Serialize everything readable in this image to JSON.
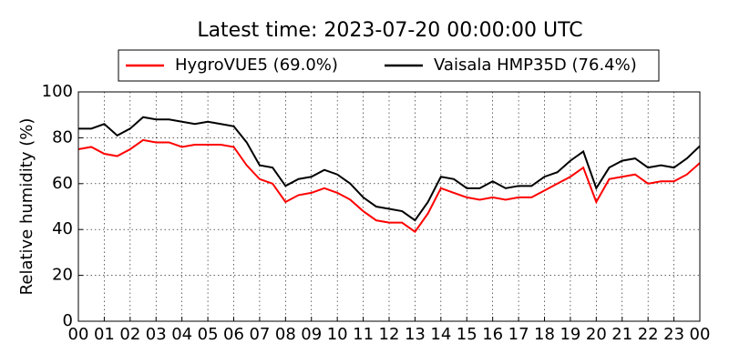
{
  "chart_data": {
    "type": "line",
    "title": "Latest time: 2023-07-20 00:00:00 UTC",
    "y_label": "Relative humidity (%)",
    "x": [
      0,
      0.5,
      1,
      1.5,
      2,
      2.5,
      3,
      3.5,
      4,
      4.5,
      5,
      5.5,
      6,
      6.5,
      7,
      7.5,
      8,
      8.5,
      9,
      9.5,
      10,
      10.5,
      11,
      11.5,
      12,
      12.5,
      13,
      13.5,
      14,
      14.5,
      15,
      15.5,
      16,
      16.5,
      17,
      17.5,
      18,
      18.5,
      19,
      19.5,
      20,
      20.5,
      21,
      21.5,
      22,
      22.5,
      23,
      23.5,
      24
    ],
    "series": [
      {
        "name": "HygroVUE5 (69.0%)",
        "color": "#ff0000",
        "values": [
          75,
          76,
          73,
          72,
          75,
          79,
          78,
          78,
          76,
          77,
          77,
          77,
          76,
          68,
          62,
          60,
          52,
          55,
          56,
          58,
          56,
          53,
          48,
          44,
          43,
          43,
          39,
          47,
          58,
          56,
          54,
          53,
          54,
          53,
          54,
          54,
          57,
          60,
          63,
          67,
          52,
          62,
          63,
          64,
          60,
          61,
          61,
          64,
          69
        ]
      },
      {
        "name": "Vaisala HMP35D (76.4%)",
        "color": "#000000",
        "values": [
          84,
          84,
          86,
          81,
          84,
          89,
          88,
          88,
          87,
          86,
          87,
          86,
          85,
          78,
          68,
          67,
          59,
          62,
          63,
          66,
          64,
          60,
          54,
          50,
          49,
          48,
          44,
          52,
          63,
          62,
          58,
          58,
          61,
          58,
          59,
          59,
          63,
          65,
          70,
          74,
          58,
          67,
          70,
          71,
          67,
          68,
          67,
          71,
          76.4
        ]
      }
    ],
    "xlim": [
      0,
      24
    ],
    "xticks": [
      {
        "value": 0,
        "label": "00"
      },
      {
        "value": 1,
        "label": "01"
      },
      {
        "value": 2,
        "label": "02"
      },
      {
        "value": 3,
        "label": "03"
      },
      {
        "value": 4,
        "label": "04"
      },
      {
        "value": 5,
        "label": "05"
      },
      {
        "value": 6,
        "label": "06"
      },
      {
        "value": 7,
        "label": "07"
      },
      {
        "value": 8,
        "label": "08"
      },
      {
        "value": 9,
        "label": "09"
      },
      {
        "value": 10,
        "label": "10"
      },
      {
        "value": 11,
        "label": "11"
      },
      {
        "value": 12,
        "label": "12"
      },
      {
        "value": 13,
        "label": "13"
      },
      {
        "value": 14,
        "label": "14"
      },
      {
        "value": 15,
        "label": "15"
      },
      {
        "value": 16,
        "label": "16"
      },
      {
        "value": 17,
        "label": "17"
      },
      {
        "value": 18,
        "label": "18"
      },
      {
        "value": 19,
        "label": "19"
      },
      {
        "value": 20,
        "label": "20"
      },
      {
        "value": 21,
        "label": "21"
      },
      {
        "value": 22,
        "label": "22"
      },
      {
        "value": 23,
        "label": "23"
      },
      {
        "value": 24,
        "label": "00"
      }
    ],
    "ylim": [
      0,
      100
    ],
    "yticks": [
      0,
      20,
      40,
      60,
      80,
      100
    ],
    "grid": true,
    "legend": "top"
  }
}
